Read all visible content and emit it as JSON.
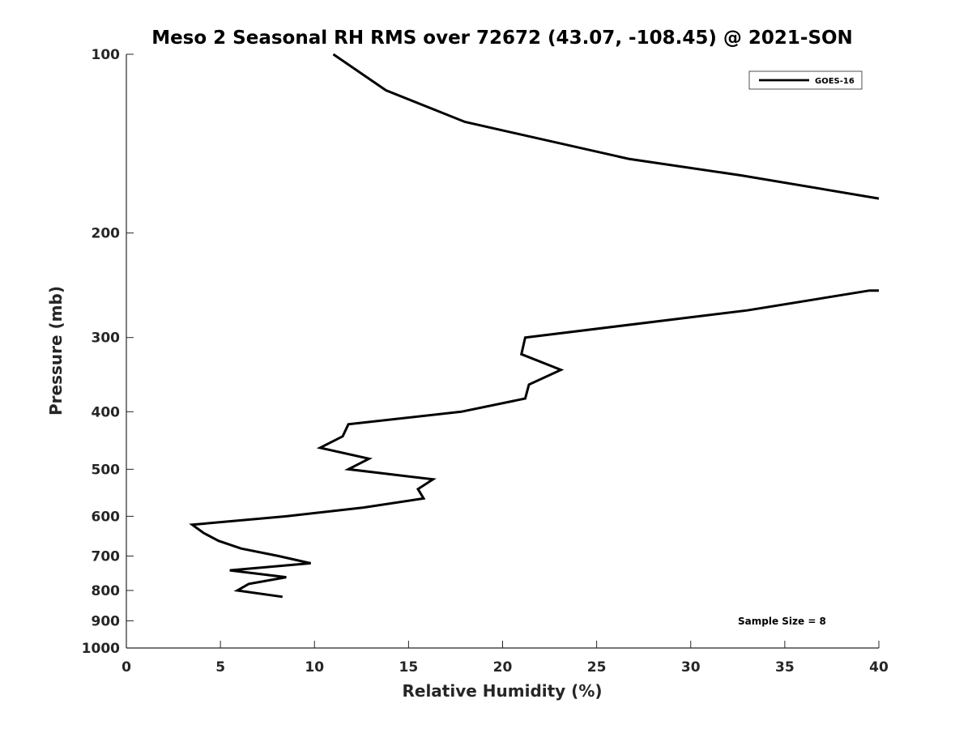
{
  "chart_data": {
    "type": "line",
    "title": "Meso 2 Seasonal RH RMS over 72672 (43.07, -108.45) @ 2021-SON",
    "xlabel": "Relative Humidity (%)",
    "ylabel": "Pressure (mb)",
    "xlim": [
      0,
      40
    ],
    "ylim": [
      100,
      1000
    ],
    "y_scale": "log",
    "y_reversed": true,
    "grid": false,
    "legend_position": "top-right",
    "x_ticks": [
      0,
      5,
      10,
      15,
      20,
      25,
      30,
      35,
      40
    ],
    "x_tick_labels": [
      "0",
      "5",
      "10",
      "15",
      "20",
      "25",
      "30",
      "35",
      "40"
    ],
    "y_ticks": [
      100,
      200,
      300,
      400,
      500,
      600,
      700,
      800,
      900,
      1000
    ],
    "y_tick_labels": [
      "100",
      "200",
      "300",
      "400",
      "500",
      "600",
      "700",
      "800",
      "900",
      "1000"
    ],
    "annotation": "Sample Size = 8",
    "series": [
      {
        "name": "GOES-16",
        "color": "#000000",
        "segments": [
          [
            {
              "x": 11.0,
              "y": 100
            },
            {
              "x": 13.8,
              "y": 115
            },
            {
              "x": 18.0,
              "y": 130
            },
            {
              "x": 26.7,
              "y": 150
            },
            {
              "x": 32.7,
              "y": 160
            },
            {
              "x": 40.0,
              "y": 175
            }
          ],
          [
            {
              "x": 40.0,
              "y": 250
            },
            {
              "x": 39.5,
              "y": 250
            },
            {
              "x": 33.0,
              "y": 270
            },
            {
              "x": 21.2,
              "y": 300
            },
            {
              "x": 21.0,
              "y": 320
            },
            {
              "x": 23.1,
              "y": 340
            },
            {
              "x": 21.4,
              "y": 360
            },
            {
              "x": 21.2,
              "y": 380
            },
            {
              "x": 17.8,
              "y": 400
            },
            {
              "x": 11.8,
              "y": 420
            },
            {
              "x": 11.5,
              "y": 440
            },
            {
              "x": 10.3,
              "y": 460
            },
            {
              "x": 12.9,
              "y": 480
            },
            {
              "x": 11.8,
              "y": 500
            },
            {
              "x": 16.3,
              "y": 520
            },
            {
              "x": 15.5,
              "y": 540
            },
            {
              "x": 15.8,
              "y": 560
            },
            {
              "x": 12.6,
              "y": 580
            },
            {
              "x": 8.5,
              "y": 600
            },
            {
              "x": 3.5,
              "y": 620
            },
            {
              "x": 4.1,
              "y": 640
            },
            {
              "x": 4.9,
              "y": 660
            },
            {
              "x": 6.1,
              "y": 680
            },
            {
              "x": 8.1,
              "y": 700
            },
            {
              "x": 9.8,
              "y": 720
            },
            {
              "x": 5.5,
              "y": 740
            },
            {
              "x": 8.5,
              "y": 760
            },
            {
              "x": 6.5,
              "y": 780
            },
            {
              "x": 5.9,
              "y": 800
            },
            {
              "x": 8.3,
              "y": 820
            }
          ]
        ]
      }
    ]
  }
}
